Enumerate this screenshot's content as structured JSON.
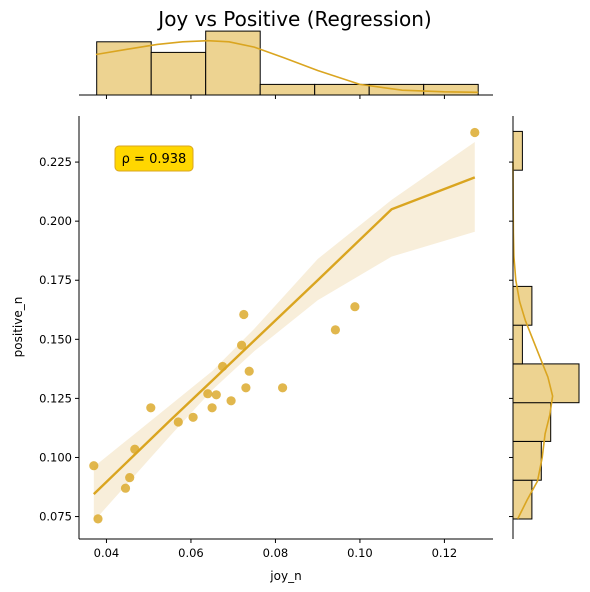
{
  "chart_data": {
    "type": "scatter",
    "title": "Joy vs Positive (Regression)",
    "xlabel": "joy_n",
    "ylabel": "positive_n",
    "xlim": [
      0.0335,
      0.1315
    ],
    "ylim": [
      0.0655,
      0.2445
    ],
    "xticks": [
      0.04,
      0.06,
      0.08,
      0.1,
      0.12
    ],
    "xtick_labels": [
      "0.04",
      "0.06",
      "0.08",
      "0.10",
      "0.12"
    ],
    "yticks": [
      0.075,
      0.1,
      0.125,
      0.15,
      0.175,
      0.2,
      0.225
    ],
    "ytick_labels": [
      "0.075",
      "0.100",
      "0.125",
      "0.150",
      "0.175",
      "0.200",
      "0.225"
    ],
    "grid": false,
    "colors": {
      "point": "#DAA520",
      "fill": "#EDD391",
      "ci": "#F8EEDA",
      "annot_bg": "#FFD700",
      "annot_edge": "#DAA520"
    },
    "annotation": "ρ = 0.938",
    "points": [
      {
        "x": 0.037,
        "y": 0.0965
      },
      {
        "x": 0.038,
        "y": 0.074
      },
      {
        "x": 0.0445,
        "y": 0.087
      },
      {
        "x": 0.0455,
        "y": 0.0915
      },
      {
        "x": 0.0467,
        "y": 0.1035
      },
      {
        "x": 0.0505,
        "y": 0.121
      },
      {
        "x": 0.057,
        "y": 0.115
      },
      {
        "x": 0.0605,
        "y": 0.117
      },
      {
        "x": 0.064,
        "y": 0.127
      },
      {
        "x": 0.065,
        "y": 0.121
      },
      {
        "x": 0.066,
        "y": 0.1265
      },
      {
        "x": 0.0675,
        "y": 0.1385
      },
      {
        "x": 0.0695,
        "y": 0.124
      },
      {
        "x": 0.072,
        "y": 0.1475
      },
      {
        "x": 0.0725,
        "y": 0.1605
      },
      {
        "x": 0.073,
        "y": 0.1295
      },
      {
        "x": 0.0738,
        "y": 0.1365
      },
      {
        "x": 0.0817,
        "y": 0.1295
      },
      {
        "x": 0.0942,
        "y": 0.154
      },
      {
        "x": 0.0988,
        "y": 0.1638
      },
      {
        "x": 0.1272,
        "y": 0.2375
      }
    ],
    "regression": {
      "x": [
        0.037,
        0.055,
        0.065,
        0.075,
        0.09,
        0.1075,
        0.1272
      ],
      "y": [
        0.0845,
        0.1155,
        0.1325,
        0.1495,
        0.175,
        0.205,
        0.2185
      ],
      "ci_low": [
        0.073,
        0.109,
        0.1285,
        0.145,
        0.1665,
        0.185,
        0.1955
      ],
      "ci_high": [
        0.096,
        0.122,
        0.1365,
        0.1545,
        0.184,
        0.209,
        0.2335
      ]
    },
    "marginal_x": {
      "bin_edges": [
        0.0377,
        0.0506,
        0.0635,
        0.0764,
        0.0893,
        0.1022,
        0.1151,
        0.128
      ],
      "counts": [
        5,
        4,
        6,
        1,
        1,
        1,
        1
      ],
      "kde_x": [
        0.0375,
        0.045,
        0.052,
        0.058,
        0.064,
        0.069,
        0.075,
        0.082,
        0.09,
        0.1,
        0.11,
        0.12,
        0.128
      ],
      "kde_y": [
        3.8,
        4.3,
        4.75,
        5.0,
        5.1,
        5.0,
        4.5,
        3.5,
        2.3,
        1.0,
        0.45,
        0.3,
        0.25
      ]
    },
    "marginal_y": {
      "bin_edges": [
        0.074,
        0.0904,
        0.1068,
        0.1232,
        0.1396,
        0.156,
        0.1724,
        0.1888,
        0.2052,
        0.2216,
        0.238
      ],
      "counts": [
        2,
        3,
        4,
        7,
        1,
        2,
        0,
        0,
        0,
        1
      ],
      "kde_y": [
        0.074,
        0.082,
        0.09,
        0.1,
        0.11,
        0.118,
        0.126,
        0.134,
        0.142,
        0.15,
        0.158,
        0.166,
        0.175,
        0.185,
        0.195,
        0.205,
        0.215,
        0.225
      ],
      "kde_x": [
        0.5,
        1.5,
        2.6,
        3.1,
        3.4,
        3.9,
        4.2,
        3.7,
        2.9,
        2.1,
        1.3,
        0.7,
        0.3,
        0.1,
        0.04,
        0.02,
        0.01,
        0.0
      ]
    }
  }
}
